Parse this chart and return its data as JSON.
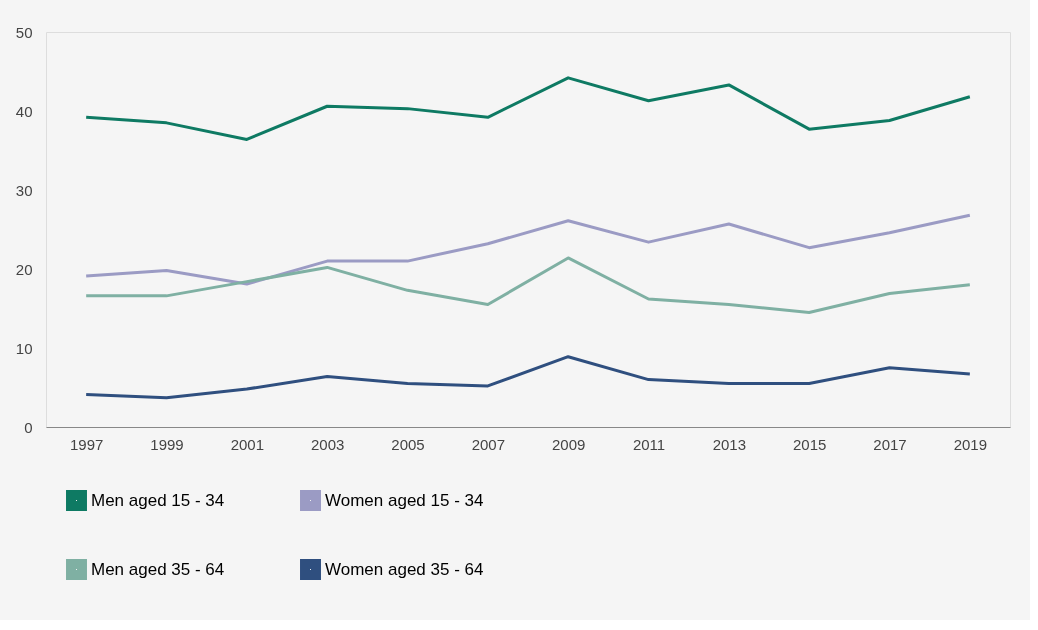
{
  "chart_data": {
    "type": "line",
    "categories": [
      "1997",
      "1999",
      "2001",
      "2003",
      "2005",
      "2007",
      "2009",
      "2011",
      "2013",
      "2015",
      "2017",
      "2019"
    ],
    "series": [
      {
        "name": "Men aged 15 - 34",
        "color": "#0e7a63",
        "values": [
          39.2,
          38.5,
          36.4,
          40.6,
          40.3,
          39.2,
          44.2,
          41.3,
          43.3,
          37.7,
          38.8,
          41.8
        ]
      },
      {
        "name": "Women aged 15 - 34",
        "color": "#9b9bc4",
        "values": [
          19.1,
          19.8,
          18.1,
          21.0,
          21.0,
          23.2,
          26.1,
          23.4,
          25.7,
          22.7,
          24.6,
          26.8
        ]
      },
      {
        "name": "Men aged 35 - 64",
        "color": "#7fb0a3",
        "values": [
          16.6,
          16.6,
          18.4,
          20.2,
          17.3,
          15.5,
          21.4,
          16.2,
          15.5,
          14.5,
          16.9,
          18.0
        ]
      },
      {
        "name": "Women aged 35 - 64",
        "color": "#2f4f7f",
        "values": [
          4.1,
          3.7,
          4.8,
          6.4,
          5.5,
          5.2,
          8.9,
          6.0,
          5.5,
          5.5,
          7.5,
          6.7
        ]
      }
    ],
    "ylim": [
      0,
      50
    ],
    "yticks": [
      0,
      10,
      20,
      30,
      40,
      50
    ],
    "grid": false,
    "legend": "bottom",
    "marker": "none",
    "line_style": "solid"
  }
}
